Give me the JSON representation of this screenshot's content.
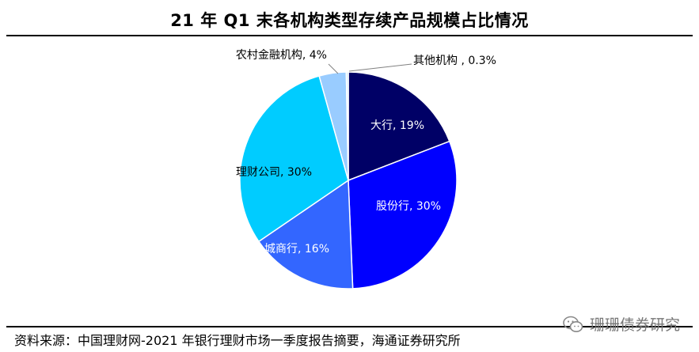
{
  "header": {
    "title": "21 年 Q1 末各机构类型存续产品规模占比情况"
  },
  "chart_data": {
    "type": "pie",
    "title": "21 年 Q1 末各机构类型存续产品规模占比情况",
    "slices": [
      {
        "name": "大行",
        "value": 19,
        "label": "大行, 19%",
        "color": "#000066",
        "text_color": "#ffffff"
      },
      {
        "name": "股份行",
        "value": 30,
        "label": "股份行, 30%",
        "color": "#0000ff",
        "text_color": "#ffffff"
      },
      {
        "name": "城商行",
        "value": 16,
        "label": "城商行, 16%",
        "color": "#3366ff",
        "text_color": "#ffffff"
      },
      {
        "name": "理财公司",
        "value": 30,
        "label": "理财公司, 30%",
        "color": "#00ccff",
        "text_color": "#000000"
      },
      {
        "name": "农村金融机构",
        "value": 4,
        "label": "农村金融机构, 4%",
        "color": "#99ccff",
        "text_color": "#000000"
      },
      {
        "name": "其他机构",
        "value": 0.3,
        "label": "其他机构 , 0.3%",
        "color": "#ccecff",
        "text_color": "#000000"
      }
    ],
    "start_angle_deg": 0,
    "direction": "clockwise",
    "label_placement": "inside, small slices outside with leader lines"
  },
  "footer": {
    "source": "资料来源：中国理财网-2021 年银行理财市场一季度报告摘要，海通证券研究所",
    "watermark": "珊珊债券研究",
    "watermark_icon": "wechat-icon"
  }
}
